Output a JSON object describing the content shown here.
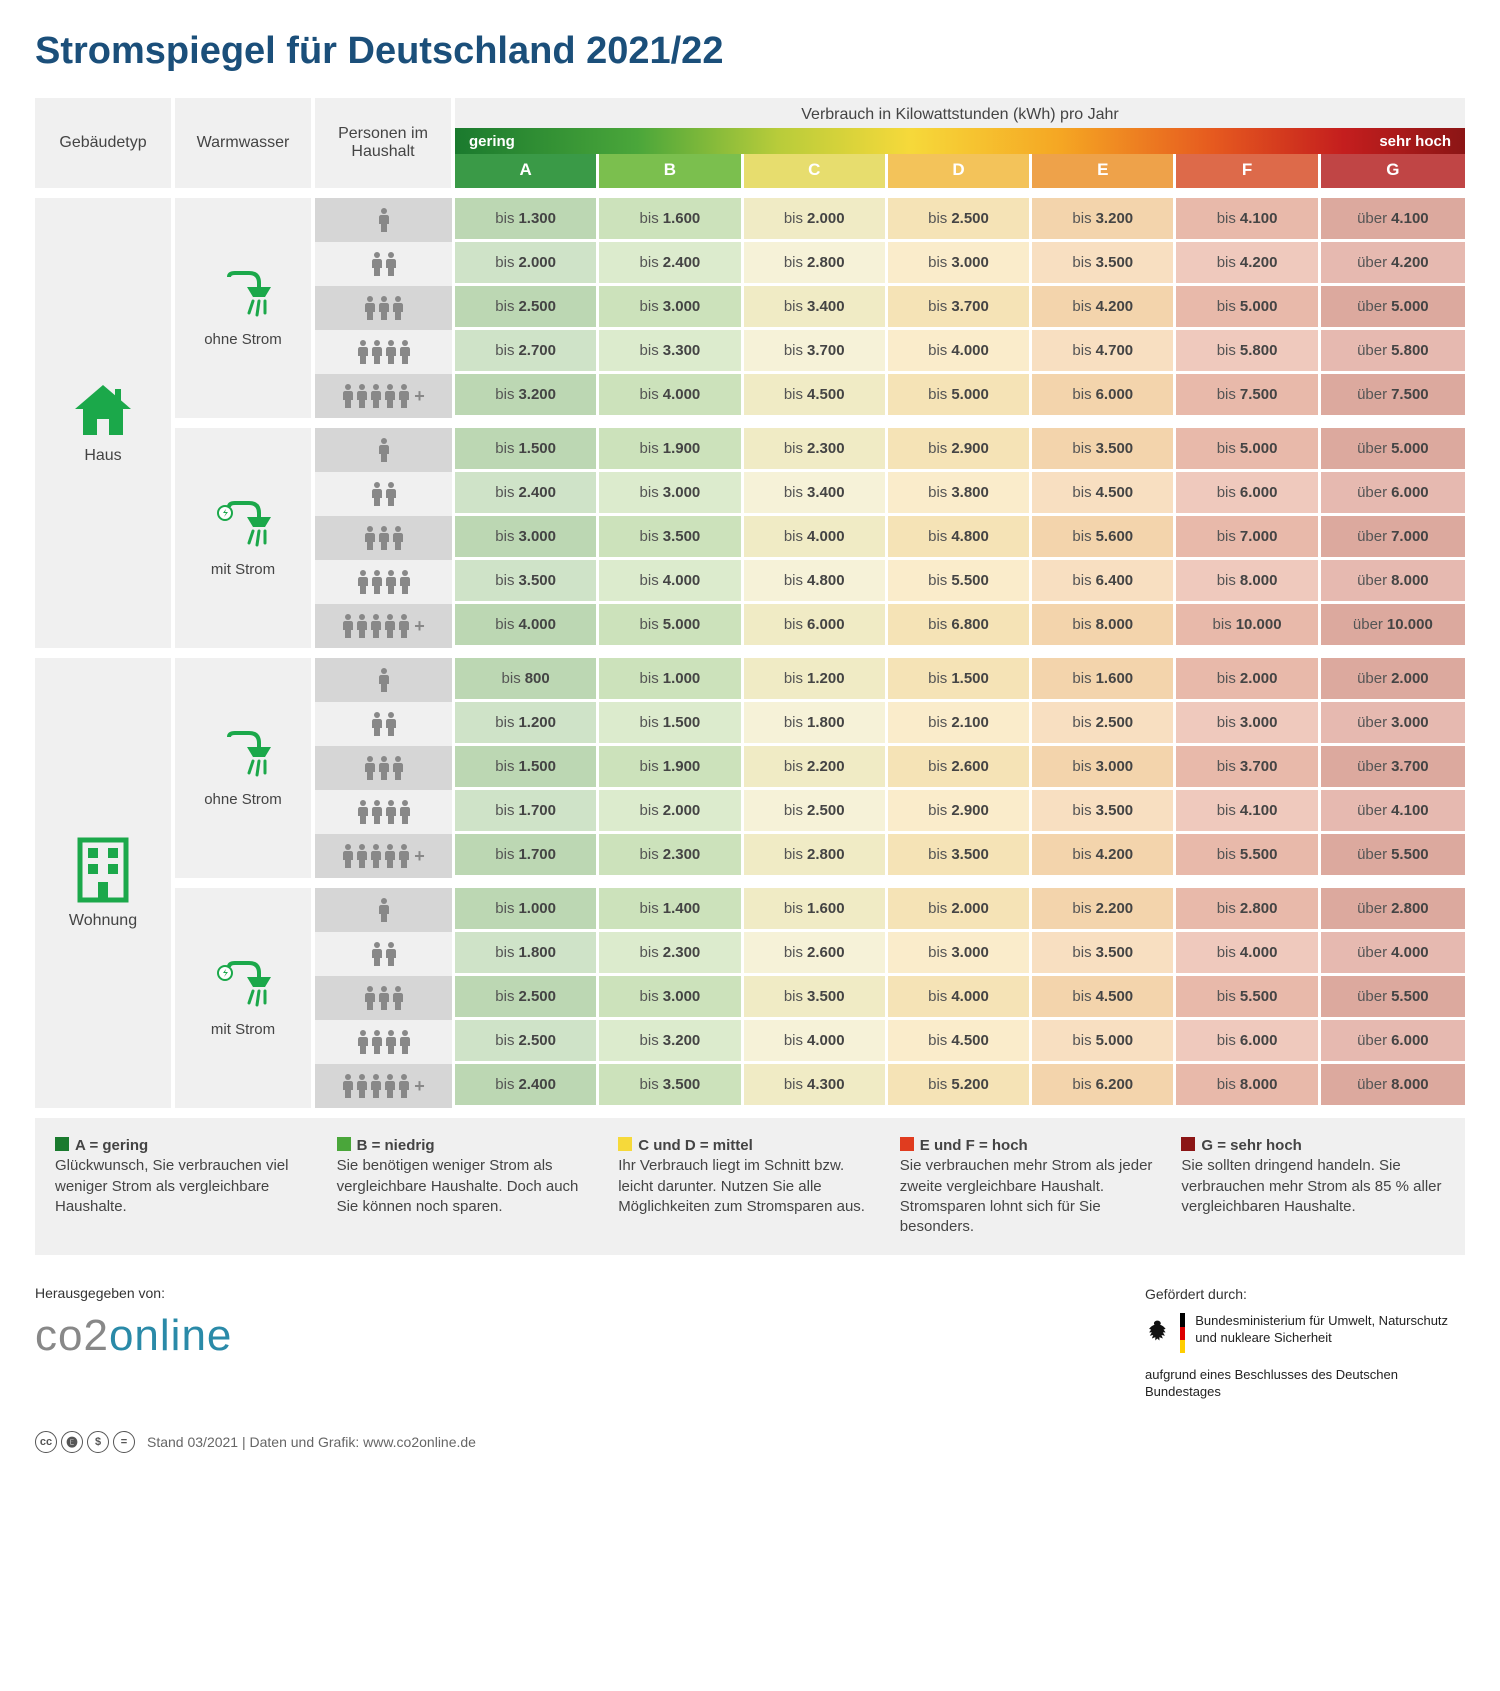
{
  "title": "Stromspiegel für Deutschland 2021/22",
  "headers": {
    "building": "Gebäudetyp",
    "water": "Warmwasser",
    "persons": "Personen im Haushalt",
    "consumption": "Verbrauch in Kilowattstunden (kWh) pro Jahr",
    "scale_left": "gering",
    "scale_right": "sehr hoch"
  },
  "ratings": [
    "A",
    "B",
    "C",
    "D",
    "E",
    "F",
    "G"
  ],
  "rating_colors": [
    "#3a9a47",
    "#7bbf4e",
    "#e7dd6e",
    "#f3c35a",
    "#eea24a",
    "#dd6a4a",
    "#c04545"
  ],
  "cell_bg_light": [
    "#cfe3c8",
    "#dcebcd",
    "#f6f2d8",
    "#faeccb",
    "#f8dfc1",
    "#efc9bd",
    "#e6b9b0"
  ],
  "cell_bg_dark": [
    "#bcd7b3",
    "#cce2bb",
    "#f0ebc5",
    "#f5e3b6",
    "#f3d4ac",
    "#e8b9aa",
    "#dca99e"
  ],
  "sections": [
    {
      "label": "Haus",
      "icon": "house",
      "groups": [
        {
          "water_label": "ohne Strom",
          "water_icon": "shower",
          "rows": [
            {
              "p": 1,
              "v": [
                "1.300",
                "1.600",
                "2.000",
                "2.500",
                "3.200",
                "4.100",
                "4.100"
              ]
            },
            {
              "p": 2,
              "v": [
                "2.000",
                "2.400",
                "2.800",
                "3.000",
                "3.500",
                "4.200",
                "4.200"
              ]
            },
            {
              "p": 3,
              "v": [
                "2.500",
                "3.000",
                "3.400",
                "3.700",
                "4.200",
                "5.000",
                "5.000"
              ]
            },
            {
              "p": 4,
              "v": [
                "2.700",
                "3.300",
                "3.700",
                "4.000",
                "4.700",
                "5.800",
                "5.800"
              ]
            },
            {
              "p": 5,
              "v": [
                "3.200",
                "4.000",
                "4.500",
                "5.000",
                "6.000",
                "7.500",
                "7.500"
              ]
            }
          ]
        },
        {
          "water_label": "mit Strom",
          "water_icon": "shower-bolt",
          "rows": [
            {
              "p": 1,
              "v": [
                "1.500",
                "1.900",
                "2.300",
                "2.900",
                "3.500",
                "5.000",
                "5.000"
              ]
            },
            {
              "p": 2,
              "v": [
                "2.400",
                "3.000",
                "3.400",
                "3.800",
                "4.500",
                "6.000",
                "6.000"
              ]
            },
            {
              "p": 3,
              "v": [
                "3.000",
                "3.500",
                "4.000",
                "4.800",
                "5.600",
                "7.000",
                "7.000"
              ]
            },
            {
              "p": 4,
              "v": [
                "3.500",
                "4.000",
                "4.800",
                "5.500",
                "6.400",
                "8.000",
                "8.000"
              ]
            },
            {
              "p": 5,
              "v": [
                "4.000",
                "5.000",
                "6.000",
                "6.800",
                "8.000",
                "10.000",
                "10.000"
              ]
            }
          ]
        }
      ]
    },
    {
      "label": "Wohnung",
      "icon": "apartment",
      "groups": [
        {
          "water_label": "ohne Strom",
          "water_icon": "shower",
          "rows": [
            {
              "p": 1,
              "v": [
                "800",
                "1.000",
                "1.200",
                "1.500",
                "1.600",
                "2.000",
                "2.000"
              ]
            },
            {
              "p": 2,
              "v": [
                "1.200",
                "1.500",
                "1.800",
                "2.100",
                "2.500",
                "3.000",
                "3.000"
              ]
            },
            {
              "p": 3,
              "v": [
                "1.500",
                "1.900",
                "2.200",
                "2.600",
                "3.000",
                "3.700",
                "3.700"
              ]
            },
            {
              "p": 4,
              "v": [
                "1.700",
                "2.000",
                "2.500",
                "2.900",
                "3.500",
                "4.100",
                "4.100"
              ]
            },
            {
              "p": 5,
              "v": [
                "1.700",
                "2.300",
                "2.800",
                "3.500",
                "4.200",
                "5.500",
                "5.500"
              ]
            }
          ]
        },
        {
          "water_label": "mit Strom",
          "water_icon": "shower-bolt",
          "rows": [
            {
              "p": 1,
              "v": [
                "1.000",
                "1.400",
                "1.600",
                "2.000",
                "2.200",
                "2.800",
                "2.800"
              ]
            },
            {
              "p": 2,
              "v": [
                "1.800",
                "2.300",
                "2.600",
                "3.000",
                "3.500",
                "4.000",
                "4.000"
              ]
            },
            {
              "p": 3,
              "v": [
                "2.500",
                "3.000",
                "3.500",
                "4.000",
                "4.500",
                "5.500",
                "5.500"
              ]
            },
            {
              "p": 4,
              "v": [
                "2.500",
                "3.200",
                "4.000",
                "4.500",
                "5.000",
                "6.000",
                "6.000"
              ]
            },
            {
              "p": 5,
              "v": [
                "2.400",
                "3.500",
                "4.300",
                "5.200",
                "6.200",
                "8.000",
                "8.000"
              ]
            }
          ]
        }
      ]
    }
  ],
  "prefix_bis": "bis ",
  "prefix_ueber": "über ",
  "legend": [
    {
      "color": "#1a7a2e",
      "title": "A = gering",
      "text": "Glückwunsch, Sie verbrauchen viel weniger Strom als vergleichbare Haushalte."
    },
    {
      "color": "#4aa63a",
      "title": "B = niedrig",
      "text": "Sie benötigen weniger Strom als vergleichbare Haushalte. Doch auch Sie können noch sparen."
    },
    {
      "color": "#f6d93a",
      "title": "C und D = mittel",
      "text": "Ihr Verbrauch liegt im Schnitt bzw. leicht darunter. Nutzen Sie alle Möglichkeiten zum Stromsparen aus."
    },
    {
      "color": "#e03c1f",
      "title": "E und F = hoch",
      "text": "Sie verbrauchen mehr Strom als jeder zweite vergleichbare Haushalt. Stromsparen lohnt sich für Sie besonders."
    },
    {
      "color": "#8b1515",
      "title": "G = sehr hoch",
      "text": "Sie sollten dringend handeln. Sie verbrauchen mehr Strom als 85 % aller vergleichbaren Haushalte."
    }
  ],
  "publisher_label": "Herausgegeben von:",
  "sponsor_label": "Gefördert durch:",
  "sponsor_name": "Bundesministerium für Umwelt, Naturschutz und nukleare Sicherheit",
  "sponsor_note": "aufgrund eines Beschlusses des Deutschen Bundestages",
  "meta": "Stand 03/2021   |   Daten und Grafik: www.co2online.de",
  "icon_color": "#1ba84a",
  "person_color": "#888888"
}
